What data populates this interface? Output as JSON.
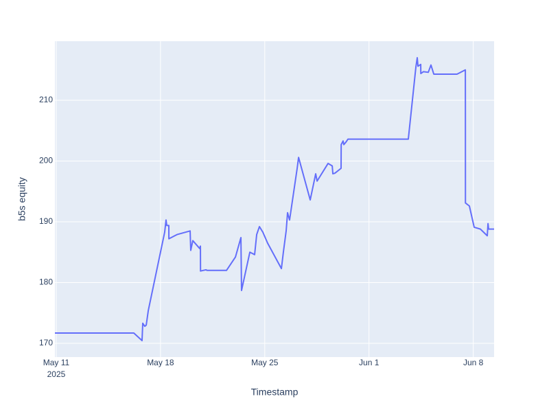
{
  "chart_data": {
    "type": "line",
    "x_title": "Timestamp",
    "y_title": "b5s equity",
    "color": "#636efa",
    "grid": true,
    "x": [
      "2025-05-10T21:50",
      "2025-05-16T05:00",
      "2025-05-16T18:15",
      "2025-05-16T19:25",
      "2025-05-16T22:40",
      "2025-05-17T01:00",
      "2025-05-17T04:20",
      "2025-05-18T06:45",
      "2025-05-18T08:55",
      "2025-05-18T10:05",
      "2025-05-18T13:25",
      "2025-05-18T13:30",
      "2025-05-19T02:40",
      "2025-05-19T23:45",
      "2025-05-20T00:45",
      "2025-05-20T04:05",
      "2025-05-20T15:10",
      "2025-05-20T16:20",
      "2025-05-20T16:30",
      "2025-05-21T01:10",
      "2025-05-21T03:20",
      "2025-05-22T10:20",
      "2025-05-23T00:45",
      "2025-05-23T09:35",
      "2025-05-23T10:35",
      "2025-05-24T00:00",
      "2025-05-24T07:40",
      "2025-05-24T11:00",
      "2025-05-24T15:25",
      "2025-05-24T20:55",
      "2025-05-25T04:35",
      "2025-05-26T02:50",
      "2025-05-26T06:00",
      "2025-05-26T10:30",
      "2025-05-26T12:45",
      "2025-05-26T16:00",
      "2025-05-27T04:15",
      "2025-05-27T06:30",
      "2025-05-28T01:15",
      "2025-05-28T10:05",
      "2025-05-28T12:20",
      "2025-05-29T06:00",
      "2025-05-29T12:45",
      "2025-05-29T13:45",
      "2025-05-29T17:05",
      "2025-05-30T03:00",
      "2025-05-30T03:10",
      "2025-05-30T06:15",
      "2025-05-30T07:25",
      "2025-05-30T10:45",
      "2025-05-30T14:05",
      "2025-06-03T15:20",
      "2025-06-04T03:35",
      "2025-06-04T05:45",
      "2025-06-04T06:55",
      "2025-06-04T11:20",
      "2025-06-04T11:30",
      "2025-06-04T15:40",
      "2025-06-04T23:30",
      "2025-06-05T03:50",
      "2025-06-05T08:25",
      "2025-06-06T21:50",
      "2025-06-07T11:15",
      "2025-06-07T11:20",
      "2025-06-07T11:25",
      "2025-06-07T17:45",
      "2025-06-08T01:30",
      "2025-06-08T11:30",
      "2025-06-08T22:35",
      "2025-06-08T23:45",
      "2025-06-09T00:45",
      "2025-06-09T09:35"
    ],
    "values": [
      171.7,
      171.7,
      170.45,
      173.3,
      172.8,
      173.0,
      175.4,
      188.3,
      190.3,
      189.4,
      189.4,
      187.2,
      187.9,
      188.5,
      185.3,
      186.9,
      185.6,
      186.0,
      181.9,
      182.1,
      182.0,
      182.0,
      184.2,
      187.4,
      178.7,
      185.0,
      184.6,
      187.9,
      189.2,
      188.3,
      186.5,
      182.3,
      185.0,
      188.5,
      191.5,
      190.3,
      198.8,
      200.6,
      193.6,
      197.9,
      196.7,
      199.6,
      199.2,
      197.9,
      198.0,
      198.8,
      202.7,
      203.3,
      202.7,
      203.1,
      203.6,
      203.6,
      215.5,
      217.0,
      215.6,
      215.9,
      214.4,
      214.7,
      214.6,
      215.8,
      214.3,
      214.3,
      215.0,
      209.0,
      193.1,
      192.6,
      189.1,
      188.8,
      187.7,
      189.7,
      188.8,
      188.8
    ],
    "xlim": [
      "2025-05-10T21:50",
      "2025-06-09T09:35"
    ],
    "xticks": [
      {
        "value": "2025-05-11T00:00",
        "label": "May 11"
      },
      {
        "value": "2025-05-18T00:00",
        "label": "May 18"
      },
      {
        "value": "2025-05-25T00:00",
        "label": "May 25"
      },
      {
        "value": "2025-06-01T00:00",
        "label": "Jun 1"
      },
      {
        "value": "2025-06-08T00:00",
        "label": "Jun 8"
      }
    ],
    "xtick_year": "2025",
    "ylim": [
      167.74,
      219.72
    ],
    "yticks": [
      170,
      180,
      190,
      200,
      210
    ]
  }
}
